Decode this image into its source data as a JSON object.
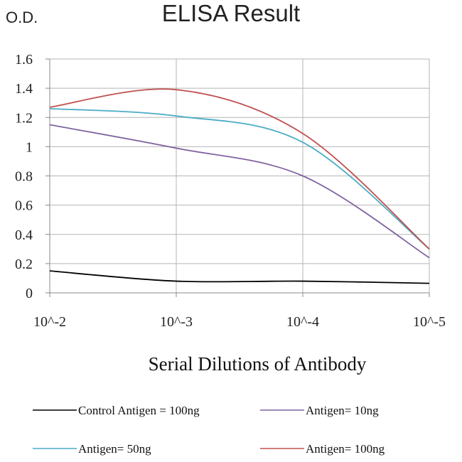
{
  "chart_data": {
    "type": "line",
    "title": "ELISA Result",
    "ylabel": "O.D.",
    "xlabel": "Serial Dilutions of Antibody",
    "categories": [
      "10^-2",
      "10^-3",
      "10^-4",
      "10^-5"
    ],
    "ylim": [
      0,
      1.6
    ],
    "yticks": [
      "0",
      "0.2",
      "0.4",
      "0.6",
      "0.8",
      "1",
      "1.2",
      "1.4",
      "1.6"
    ],
    "grid": true,
    "legend": "bottom",
    "series": [
      {
        "name": "Control Antigen = 100ng",
        "color": "#000000",
        "values": [
          0.15,
          0.08,
          0.08,
          0.065
        ]
      },
      {
        "name": "Antigen= 10ng",
        "color": "#8064a2",
        "values": [
          1.15,
          0.99,
          0.8,
          0.24
        ]
      },
      {
        "name": "Antigen= 50ng",
        "color": "#4bacc6",
        "values": [
          1.26,
          1.21,
          1.03,
          0.3
        ]
      },
      {
        "name": "Antigen= 100ng",
        "color": "#c0504d",
        "values": [
          1.27,
          1.39,
          1.09,
          0.3
        ]
      }
    ]
  }
}
